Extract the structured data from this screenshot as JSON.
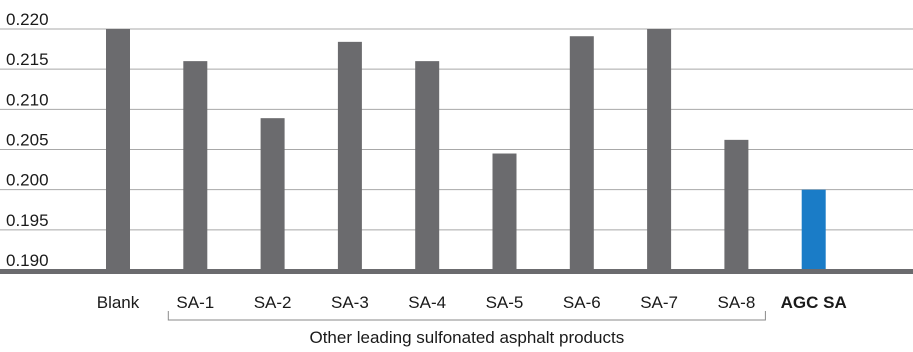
{
  "chart_data": {
    "type": "bar",
    "categories": [
      "Blank",
      "SA-1",
      "SA-2",
      "SA-3",
      "SA-4",
      "SA-5",
      "SA-6",
      "SA-7",
      "SA-8",
      "AGC SA"
    ],
    "values": [
      0.22,
      0.216,
      0.2089,
      0.2184,
      0.216,
      0.2045,
      0.2191,
      0.22,
      0.2062,
      0.2
    ],
    "highlight_category": "AGC SA",
    "colors": {
      "bar": "#6b6b6e",
      "highlight": "#1a7cc7",
      "grid": "#a8a8a8",
      "axis": "#6b6b6e"
    },
    "ylim": [
      0.19,
      0.22
    ],
    "yticks": [
      "0.220",
      "0.215",
      "0.210",
      "0.205",
      "0.200",
      "0.195",
      "0.190"
    ],
    "ytick_values": [
      0.22,
      0.215,
      0.21,
      0.205,
      0.2,
      0.195,
      0.19
    ],
    "grid": true,
    "group_bracket": {
      "label": "Other leading sulfonated asphalt products",
      "from": "SA-1",
      "to": "SA-8"
    },
    "title": "",
    "xlabel": "",
    "ylabel": ""
  }
}
